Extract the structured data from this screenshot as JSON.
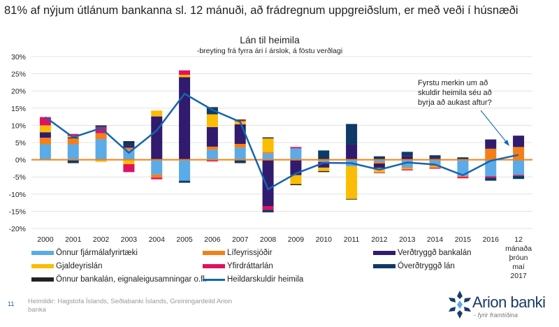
{
  "headline": "81% af nýjum útlánum bankanna sl. 12 mánuði, að frádregnum uppgreiðslum, er með veði í húsnæði",
  "chart_data": {
    "type": "bar",
    "stacked": true,
    "title": "Lán til heimila",
    "subtitle": "-breyting frá fyrra ári í árslok, á föstu verðlagi",
    "categories": [
      "2000",
      "2001",
      "2002",
      "2003",
      "2004",
      "2005",
      "2006",
      "2007",
      "2008",
      "2009",
      "2010",
      "2011",
      "2012",
      "2013",
      "2014",
      "2015",
      "2016",
      "12 mánaða þróun maí 2017"
    ],
    "ylim": [
      -20,
      30
    ],
    "yticks": [
      -20,
      -15,
      -10,
      -5,
      0,
      5,
      10,
      15,
      20,
      25,
      30
    ],
    "ytick_labels": [
      "-20%",
      "-15%",
      "-10%",
      "-5%",
      "0%",
      "5%",
      "10%",
      "15%",
      "20%",
      "25%",
      "30%"
    ],
    "grid": true,
    "legend_position": "bottom",
    "zero_line_color": "#f57f17",
    "series": [
      {
        "name": "Önnur fjármálafyrirtæki",
        "color": "#5aabe8",
        "values": [
          4.5,
          4.5,
          6.0,
          2.8,
          -4.3,
          -6.1,
          2.9,
          3.5,
          1.8,
          3.3,
          -0.5,
          -1.9,
          -0.7,
          -2.2,
          -1.6,
          -4.7,
          -4.8,
          -4.4
        ]
      },
      {
        "name": "Lífeyrissjóðir",
        "color": "#f57f17",
        "values": [
          1.9,
          1.7,
          1.7,
          0.7,
          -0.9,
          0,
          0.9,
          1.1,
          0.5,
          0,
          -0.2,
          0,
          -0.4,
          -0.3,
          -0.3,
          -0.3,
          3.2,
          3.7
        ]
      },
      {
        "name": "Verðtryggð bankalán",
        "color": "#311b6e",
        "values": [
          1.6,
          0.3,
          0,
          0.6,
          12.6,
          24.0,
          5.7,
          5.7,
          -13.5,
          -4.5,
          -1.6,
          4.5,
          -1.3,
          1.1,
          0.5,
          0,
          2.7,
          3.3
        ]
      },
      {
        "name": "Gjaldeyrislán",
        "color": "#fbbc05",
        "values": [
          2.0,
          0.4,
          -0.6,
          -1.3,
          1.7,
          0.7,
          3.7,
          0.9,
          3.9,
          -2.6,
          -1.0,
          -9.5,
          -1.3,
          -0.3,
          -0.4,
          0,
          0,
          0
        ]
      },
      {
        "name": "Yfirdráttarlán",
        "color": "#e0115f",
        "values": [
          2.4,
          0.6,
          1.8,
          -2.3,
          -0.5,
          1.3,
          -0.5,
          0.3,
          -1.1,
          0.4,
          0,
          0,
          -0.2,
          -0.3,
          -0.3,
          -0.4,
          -0.4,
          -0.3
        ]
      },
      {
        "name": "Óverðtryggð lán",
        "color": "#0d3a66",
        "values": [
          0,
          -1.0,
          0.5,
          1.0,
          0,
          -0.6,
          1.9,
          -1.0,
          -0.7,
          0,
          2.7,
          5.9,
          1.0,
          1.2,
          0.8,
          0.7,
          -0.9,
          -0.9
        ]
      },
      {
        "name": "Önnur bankalán, eignaleigusamningar o.fl.",
        "color": "#222222",
        "values": [
          0,
          0,
          0,
          0.3,
          0,
          0,
          0.2,
          0.2,
          0.3,
          -0.3,
          -0.3,
          -0.2,
          0,
          0,
          0,
          0,
          0,
          0
        ]
      }
    ],
    "line": {
      "name": "Heildarskuldir heimila",
      "color": "#1565b0",
      "values": [
        12.4,
        6.5,
        9.2,
        2.0,
        8.5,
        19.2,
        14.5,
        11.0,
        -8.6,
        -4.0,
        -0.9,
        -1.0,
        -2.9,
        -0.8,
        -1.4,
        -4.5,
        -0.3,
        1.4
      ]
    },
    "annotation": {
      "text_lines": [
        "Fyrstu merkin um að",
        "skuldir heimila séu að",
        "byrja að aukast aftur?"
      ],
      "points_to": "12 mánaða þróun maí 2017"
    }
  },
  "footer": {
    "page_number": "11",
    "source": "Heimildir: Hagstofa Íslands, Seðlabanki Íslands, Greiningardeild Arion banka"
  },
  "logo": {
    "name": "Arion banki",
    "tagline": "- fyrir framtíðina"
  }
}
